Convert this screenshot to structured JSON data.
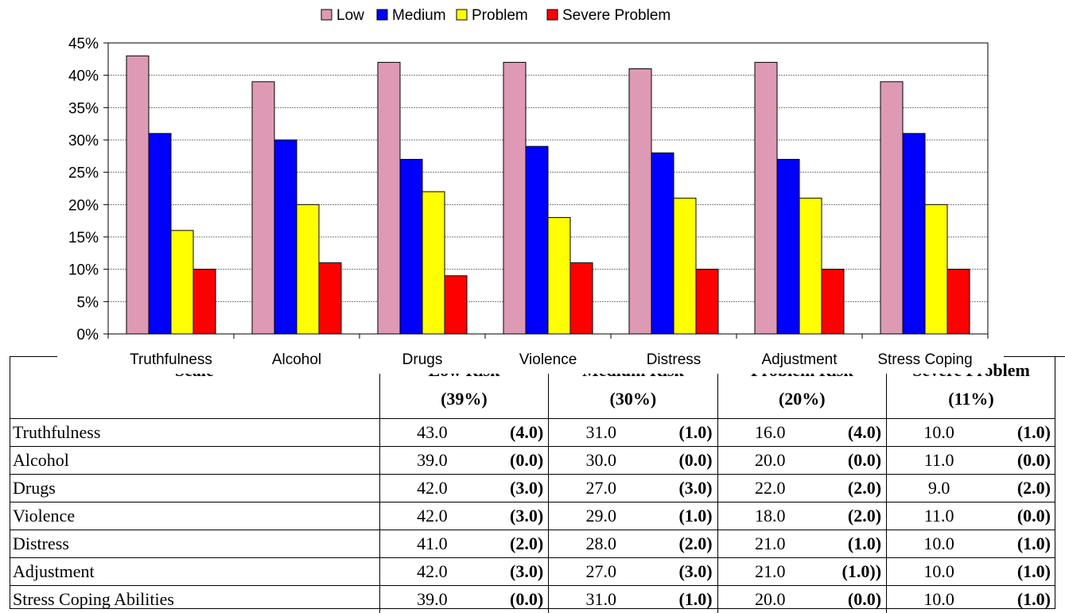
{
  "chart_data": {
    "type": "bar",
    "categories": [
      "Truthfulness",
      "Alcohol",
      "Drugs",
      "Violence",
      "Distress",
      "Adjustment",
      "Stress Coping"
    ],
    "series": [
      {
        "name": "Low",
        "color": "#de9ab4",
        "values": [
          43,
          39,
          42,
          42,
          41,
          42,
          39
        ]
      },
      {
        "name": "Medium",
        "color": "#0000ff",
        "values": [
          31,
          30,
          27,
          29,
          28,
          27,
          31
        ]
      },
      {
        "name": "Problem",
        "color": "#ffff00",
        "values": [
          16,
          20,
          22,
          18,
          21,
          21,
          20
        ]
      },
      {
        "name": "Severe Problem",
        "color": "#ff0000",
        "values": [
          10,
          11,
          9,
          11,
          10,
          10,
          10
        ]
      }
    ],
    "ylim": [
      0,
      45
    ],
    "yticks": [
      "0%",
      "5%",
      "10%",
      "15%",
      "20%",
      "25%",
      "30%",
      "35%",
      "40%",
      "45%"
    ],
    "grid": "horizontal dashed",
    "legend": "top-center"
  },
  "table": {
    "headers": {
      "scale": "Scale",
      "low": "Low Risk",
      "low_pct": "(39%)",
      "medium": "Medium Risk",
      "medium_pct": "(30%)",
      "problem": "Problem Risk",
      "problem_pct": "(20%)",
      "severe": "Severe Problem",
      "severe_pct": "(11%)"
    },
    "rows": [
      {
        "scale": "Truthfulness",
        "low": "43.0",
        "low_sd": "(4.0)",
        "med": "31.0",
        "med_sd": "(1.0)",
        "prob": "16.0",
        "prob_sd": "(4.0)",
        "sev": "10.0",
        "sev_sd": "(1.0)"
      },
      {
        "scale": "Alcohol",
        "low": "39.0",
        "low_sd": "(0.0)",
        "med": "30.0",
        "med_sd": "(0.0)",
        "prob": "20.0",
        "prob_sd": "(0.0)",
        "sev": "11.0",
        "sev_sd": "(0.0)"
      },
      {
        "scale": "Drugs",
        "low": "42.0",
        "low_sd": "(3.0)",
        "med": "27.0",
        "med_sd": "(3.0)",
        "prob": "22.0",
        "prob_sd": "(2.0)",
        "sev": "9.0",
        "sev_sd": "(2.0)"
      },
      {
        "scale": "Violence",
        "low": "42.0",
        "low_sd": "(3.0)",
        "med": "29.0",
        "med_sd": "(1.0)",
        "prob": "18.0",
        "prob_sd": "(2.0)",
        "sev": "11.0",
        "sev_sd": "(0.0)"
      },
      {
        "scale": "Distress",
        "low": "41.0",
        "low_sd": "(2.0)",
        "med": "28.0",
        "med_sd": "(2.0)",
        "prob": "21.0",
        "prob_sd": "(1.0)",
        "sev": "10.0",
        "sev_sd": "(1.0)"
      },
      {
        "scale": "Adjustment",
        "low": "42.0",
        "low_sd": "(3.0)",
        "med": "27.0",
        "med_sd": "(3.0)",
        "prob": "21.0",
        "prob_sd": "(1.0))",
        "sev": "10.0",
        "sev_sd": "(1.0)"
      },
      {
        "scale": "Stress Coping Abilities",
        "low": "39.0",
        "low_sd": "(0.0)",
        "med": "31.0",
        "med_sd": "(1.0)",
        "prob": "20.0",
        "prob_sd": "(0.0)",
        "sev": "10.0",
        "sev_sd": "(1.0)"
      }
    ]
  }
}
